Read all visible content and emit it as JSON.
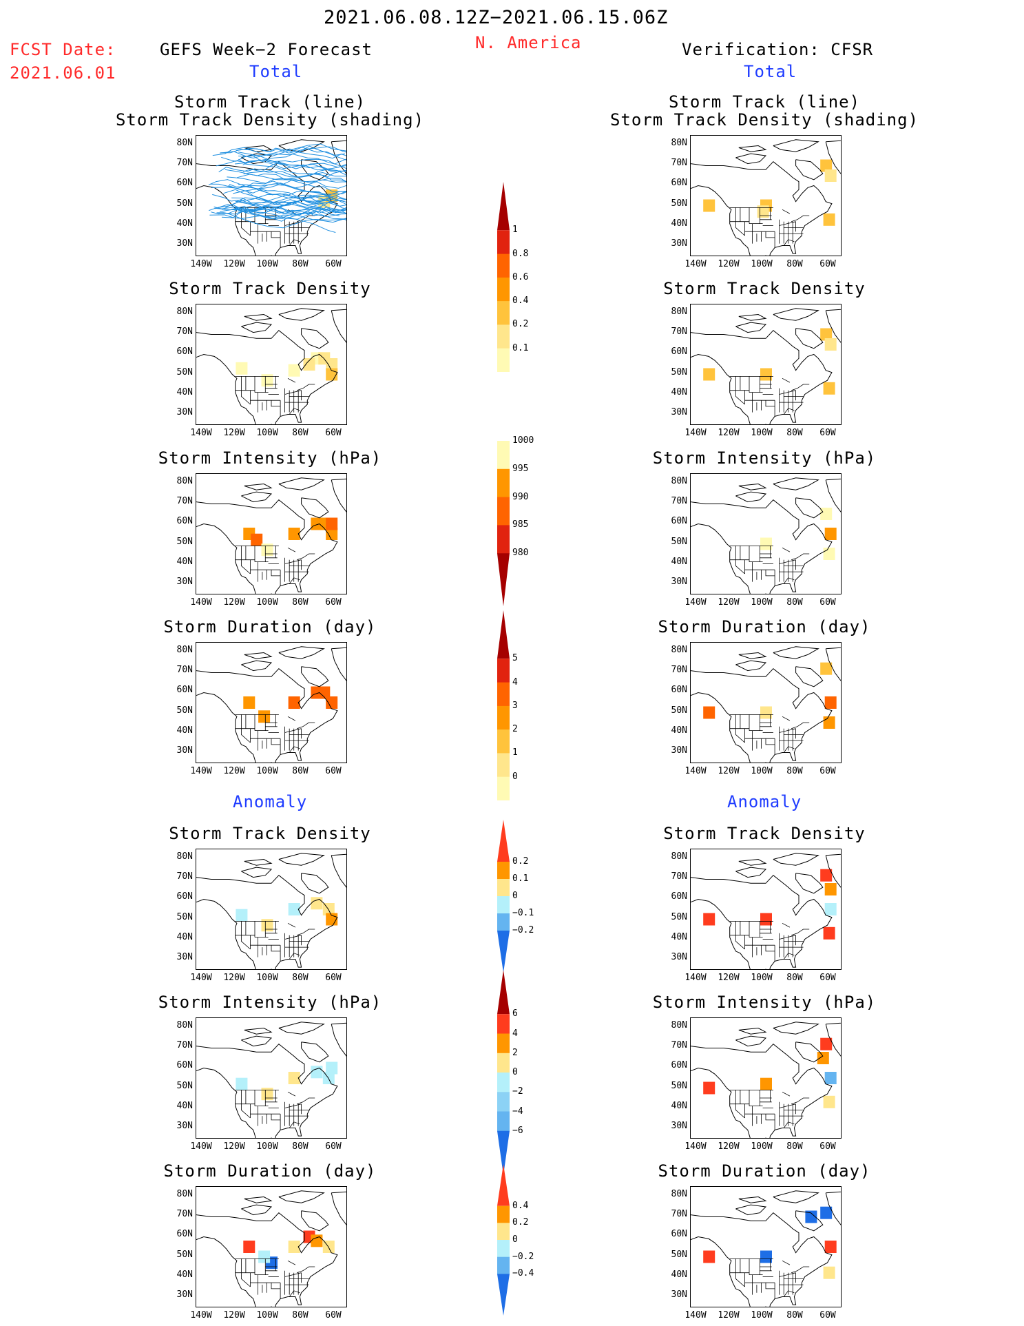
{
  "header": {
    "period": "2021.06.08.12Z−2021.06.15.06Z",
    "region": "N. America",
    "fcst_label": "FCST Date:",
    "fcst_date": "2021.06.01",
    "left_title": "GEFS Week−2 Forecast",
    "right_title": "Verification: CFSR",
    "total_label": "Total",
    "anomaly_label": "Anomaly"
  },
  "panel_titles": {
    "track_line": "Storm Track (line)",
    "track_shading": "Storm Track Density (shading)",
    "density": "Storm Track Density",
    "intensity": "Storm Intensity (hPa)",
    "duration": "Storm Duration (day)"
  },
  "axes": {
    "lat_ticks": [
      "80N",
      "70N",
      "60N",
      "50N",
      "40N",
      "30N"
    ],
    "lon_ticks": [
      "140W",
      "120W",
      "100W",
      "80W",
      "60W"
    ]
  },
  "colorbars": [
    {
      "id": "density_total",
      "labels": [
        "1",
        "0.8",
        "0.6",
        "0.4",
        "0.2",
        "0.1"
      ],
      "colors": [
        "#a50000",
        "#e1230f",
        "#ff6400",
        "#ff9600",
        "#ffc33c",
        "#ffe68c",
        "#fffab4"
      ]
    },
    {
      "id": "intensity_total",
      "labels": [
        "1000",
        "995",
        "990",
        "985",
        "980"
      ],
      "colors": [
        "#fffab4",
        "#ff9600",
        "#ff6400",
        "#e1230f",
        "#a50000"
      ]
    },
    {
      "id": "duration_total",
      "labels": [
        "5",
        "4",
        "3",
        "2",
        "1",
        "0"
      ],
      "colors": [
        "#a50000",
        "#e1230f",
        "#ff6400",
        "#ff9600",
        "#ffc33c",
        "#ffe68c",
        "#fffab4"
      ]
    },
    {
      "id": "density_anom",
      "labels": [
        "0.2",
        "0.1",
        "0",
        "−0.1",
        "−0.2"
      ],
      "colors": [
        "#ff3c1e",
        "#ff9600",
        "#ffe68c",
        "#b4f0fa",
        "#64b4f0",
        "#1e6ee6"
      ]
    },
    {
      "id": "intensity_anom",
      "labels": [
        "6",
        "4",
        "2",
        "0",
        "−2",
        "−4",
        "−6"
      ],
      "colors": [
        "#a50000",
        "#ff3c1e",
        "#ff9600",
        "#ffe68c",
        "#b4f0fa",
        "#8cd2f5",
        "#64b4f0",
        "#1e6ee6"
      ]
    },
    {
      "id": "duration_anom",
      "labels": [
        "0.4",
        "0.2",
        "0",
        "−0.2",
        "−0.4"
      ],
      "colors": [
        "#ff3c1e",
        "#ff9600",
        "#ffe68c",
        "#b4f0fa",
        "#64b4f0",
        "#1e6ee6"
      ]
    }
  ],
  "map_fields": {
    "gefs_track": {
      "tracks": true,
      "cells": [
        [
          -65,
          52,
          "#ffe68c"
        ],
        [
          -60,
          55,
          "#ffc33c"
        ]
      ]
    },
    "cfsr_track": {
      "cells": [
        [
          -60,
          70,
          "#ffc33c"
        ],
        [
          -57,
          65,
          "#ffe68c"
        ],
        [
          -138,
          50,
          "#ffc33c"
        ],
        [
          -100,
          50,
          "#ffc33c"
        ],
        [
          -102,
          47,
          "#ffe68c"
        ],
        [
          -58,
          43,
          "#ffc33c"
        ]
      ]
    },
    "gefs_density": {
      "cells": [
        [
          -70,
          58,
          "#fffab4"
        ],
        [
          -65,
          58,
          "#ffe68c"
        ],
        [
          -60,
          55,
          "#ffe68c"
        ],
        [
          -60,
          50,
          "#ffc33c"
        ],
        [
          -75,
          55,
          "#ffe68c"
        ],
        [
          -85,
          52,
          "#fffab4"
        ],
        [
          -103,
          47,
          "#fffab4"
        ],
        [
          -120,
          53,
          "#fffab4"
        ]
      ]
    },
    "cfsr_density": {
      "cells": [
        [
          -60,
          70,
          "#ffc33c"
        ],
        [
          -57,
          65,
          "#ffe68c"
        ],
        [
          -138,
          50,
          "#ffc33c"
        ],
        [
          -100,
          50,
          "#ffc33c"
        ],
        [
          -58,
          43,
          "#ffc33c"
        ]
      ]
    },
    "gefs_intensity": {
      "cells": [
        [
          -70,
          60,
          "#ff9600"
        ],
        [
          -65,
          60,
          "#ff9600"
        ],
        [
          -60,
          55,
          "#ff9600"
        ],
        [
          -60,
          60,
          "#ff6400"
        ],
        [
          -85,
          55,
          "#ff9600"
        ],
        [
          -115,
          55,
          "#ff9600"
        ],
        [
          -110,
          52,
          "#ff6400"
        ],
        [
          -103,
          47,
          "#fffab4"
        ]
      ]
    },
    "cfsr_intensity": {
      "cells": [
        [
          -60,
          65,
          "#fffab4"
        ],
        [
          -57,
          55,
          "#ff9600"
        ],
        [
          -100,
          50,
          "#fffab4"
        ],
        [
          -58,
          45,
          "#fffab4"
        ]
      ]
    },
    "gefs_duration": {
      "cells": [
        [
          -70,
          60,
          "#ff6400"
        ],
        [
          -65,
          60,
          "#ff6400"
        ],
        [
          -60,
          55,
          "#ff6400"
        ],
        [
          -85,
          55,
          "#ff6400"
        ],
        [
          -115,
          55,
          "#ff9600"
        ],
        [
          -105,
          48,
          "#ff9600"
        ]
      ]
    },
    "cfsr_duration": {
      "cells": [
        [
          -60,
          72,
          "#ffc33c"
        ],
        [
          -57,
          55,
          "#ff6400"
        ],
        [
          -138,
          50,
          "#ff6400"
        ],
        [
          -100,
          50,
          "#ffe68c"
        ],
        [
          -58,
          45,
          "#ff9600"
        ]
      ]
    },
    "gefs_density_anom": {
      "cells": [
        [
          -70,
          58,
          "#ffe68c"
        ],
        [
          -62,
          55,
          "#ffe68c"
        ],
        [
          -60,
          50,
          "#ff9600"
        ],
        [
          -85,
          55,
          "#b4f0fa"
        ],
        [
          -120,
          52,
          "#b4f0fa"
        ],
        [
          -103,
          47,
          "#ffe68c"
        ]
      ]
    },
    "cfsr_density_anom": {
      "cells": [
        [
          -60,
          72,
          "#ff3c1e"
        ],
        [
          -57,
          65,
          "#ff9600"
        ],
        [
          -138,
          50,
          "#ff3c1e"
        ],
        [
          -100,
          50,
          "#ff3c1e"
        ],
        [
          -58,
          43,
          "#ff3c1e"
        ],
        [
          -57,
          55,
          "#b4f0fa"
        ]
      ]
    },
    "gefs_intensity_anom": {
      "cells": [
        [
          -70,
          58,
          "#b4f0fa"
        ],
        [
          -62,
          55,
          "#b4f0fa"
        ],
        [
          -60,
          60,
          "#b4f0fa"
        ],
        [
          -85,
          55,
          "#ffe68c"
        ],
        [
          -120,
          52,
          "#b4f0fa"
        ],
        [
          -103,
          47,
          "#ffe68c"
        ]
      ]
    },
    "cfsr_intensity_anom": {
      "cells": [
        [
          -60,
          72,
          "#ff3c1e"
        ],
        [
          -62,
          65,
          "#ff9600"
        ],
        [
          -138,
          50,
          "#ff3c1e"
        ],
        [
          -100,
          52,
          "#ff9600"
        ],
        [
          -57,
          55,
          "#64b4f0"
        ],
        [
          -58,
          43,
          "#ffe68c"
        ]
      ]
    },
    "gefs_duration_anom": {
      "cells": [
        [
          -75,
          60,
          "#ff3c1e"
        ],
        [
          -70,
          58,
          "#ff9600"
        ],
        [
          -62,
          55,
          "#ffe68c"
        ],
        [
          -85,
          55,
          "#ffe68c"
        ],
        [
          -115,
          55,
          "#ff3c1e"
        ],
        [
          -100,
          47,
          "#1e6ee6"
        ],
        [
          -105,
          50,
          "#b4f0fa"
        ]
      ]
    },
    "cfsr_duration_anom": {
      "cells": [
        [
          -60,
          72,
          "#1e6ee6"
        ],
        [
          -70,
          70,
          "#1e6ee6"
        ],
        [
          -138,
          50,
          "#ff3c1e"
        ],
        [
          -100,
          50,
          "#1e6ee6"
        ],
        [
          -57,
          55,
          "#ff3c1e"
        ],
        [
          -58,
          42,
          "#ffe68c"
        ]
      ]
    }
  }
}
